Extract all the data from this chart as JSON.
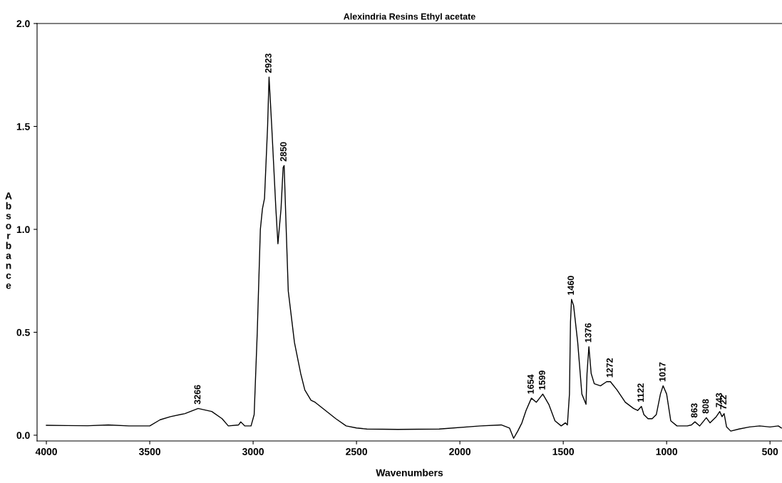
{
  "chart_data": {
    "type": "line",
    "title": "Alexindria Resins Ethyl acetate",
    "xlabel": "Wavenumbers",
    "ylabel": "Absorbance",
    "xlim": [
      4045,
      442
    ],
    "ylim": [
      -0.028,
      2.0
    ],
    "xticks": [
      4000,
      3500,
      3000,
      2500,
      2000,
      1500,
      1000,
      500
    ],
    "yticks": [
      {
        "value": 0,
        "label": "0.0"
      },
      {
        "value": 0.5,
        "label": "0.5"
      },
      {
        "value": 1.0,
        "label": "1.0"
      },
      {
        "value": 1.5,
        "label": "1.5"
      },
      {
        "value": 2.0,
        "label": "2.0"
      }
    ],
    "grid": false,
    "legend": false,
    "series": [
      {
        "color": "#000000",
        "x": [
          4000,
          3900,
          3800,
          3700,
          3600,
          3500,
          3450,
          3400,
          3330,
          3266,
          3200,
          3150,
          3120,
          3070,
          3060,
          3040,
          3010,
          2995,
          2980,
          2965,
          2955,
          2945,
          2930,
          2923,
          2910,
          2890,
          2880,
          2865,
          2855,
          2850,
          2840,
          2830,
          2800,
          2770,
          2750,
          2720,
          2700,
          2650,
          2600,
          2550,
          2500,
          2450,
          2300,
          2100,
          1900,
          1800,
          1760,
          1740,
          1720,
          1700,
          1680,
          1654,
          1630,
          1599,
          1570,
          1540,
          1510,
          1490,
          1480,
          1470,
          1465,
          1460,
          1450,
          1430,
          1410,
          1390,
          1385,
          1376,
          1365,
          1350,
          1320,
          1290,
          1272,
          1240,
          1200,
          1160,
          1140,
          1122,
          1110,
          1090,
          1070,
          1050,
          1030,
          1017,
          1000,
          980,
          950,
          900,
          880,
          863,
          840,
          808,
          790,
          760,
          743,
          732,
          722,
          710,
          690,
          650,
          600,
          550,
          500,
          460,
          445
        ],
        "values": [
          0.048,
          0.047,
          0.046,
          0.05,
          0.045,
          0.045,
          0.075,
          0.09,
          0.105,
          0.13,
          0.115,
          0.08,
          0.045,
          0.05,
          0.065,
          0.045,
          0.045,
          0.1,
          0.5,
          1.0,
          1.1,
          1.15,
          1.5,
          1.74,
          1.5,
          1.1,
          0.93,
          1.1,
          1.3,
          1.31,
          1.0,
          0.7,
          0.45,
          0.3,
          0.22,
          0.17,
          0.16,
          0.12,
          0.08,
          0.045,
          0.035,
          0.03,
          0.028,
          0.03,
          0.045,
          0.05,
          0.035,
          -0.015,
          0.02,
          0.06,
          0.12,
          0.18,
          0.16,
          0.2,
          0.15,
          0.07,
          0.045,
          0.06,
          0.05,
          0.2,
          0.55,
          0.66,
          0.63,
          0.45,
          0.2,
          0.15,
          0.3,
          0.43,
          0.3,
          0.25,
          0.24,
          0.26,
          0.26,
          0.22,
          0.16,
          0.13,
          0.12,
          0.14,
          0.1,
          0.08,
          0.08,
          0.1,
          0.2,
          0.24,
          0.2,
          0.07,
          0.045,
          0.045,
          0.05,
          0.065,
          0.045,
          0.085,
          0.06,
          0.09,
          0.115,
          0.09,
          0.105,
          0.04,
          0.02,
          0.03,
          0.04,
          0.045,
          0.04,
          0.045,
          0.035
        ]
      }
    ],
    "annotations": [
      {
        "text": "3266",
        "x": 3266,
        "y": 0.13
      },
      {
        "text": "2923",
        "x": 2923,
        "y": 1.74
      },
      {
        "text": "2850",
        "x": 2850,
        "y": 1.31
      },
      {
        "text": "1654",
        "x": 1654,
        "y": 0.18
      },
      {
        "text": "1599",
        "x": 1599,
        "y": 0.2
      },
      {
        "text": "1460",
        "x": 1460,
        "y": 0.66
      },
      {
        "text": "1376",
        "x": 1376,
        "y": 0.43
      },
      {
        "text": "1272",
        "x": 1272,
        "y": 0.26
      },
      {
        "text": "1122",
        "x": 1122,
        "y": 0.14
      },
      {
        "text": "1017",
        "x": 1017,
        "y": 0.24
      },
      {
        "text": "863",
        "x": 863,
        "y": 0.065
      },
      {
        "text": "808",
        "x": 808,
        "y": 0.085
      },
      {
        "text": "743",
        "x": 743,
        "y": 0.115
      },
      {
        "text": "722",
        "x": 722,
        "y": 0.105
      }
    ]
  }
}
